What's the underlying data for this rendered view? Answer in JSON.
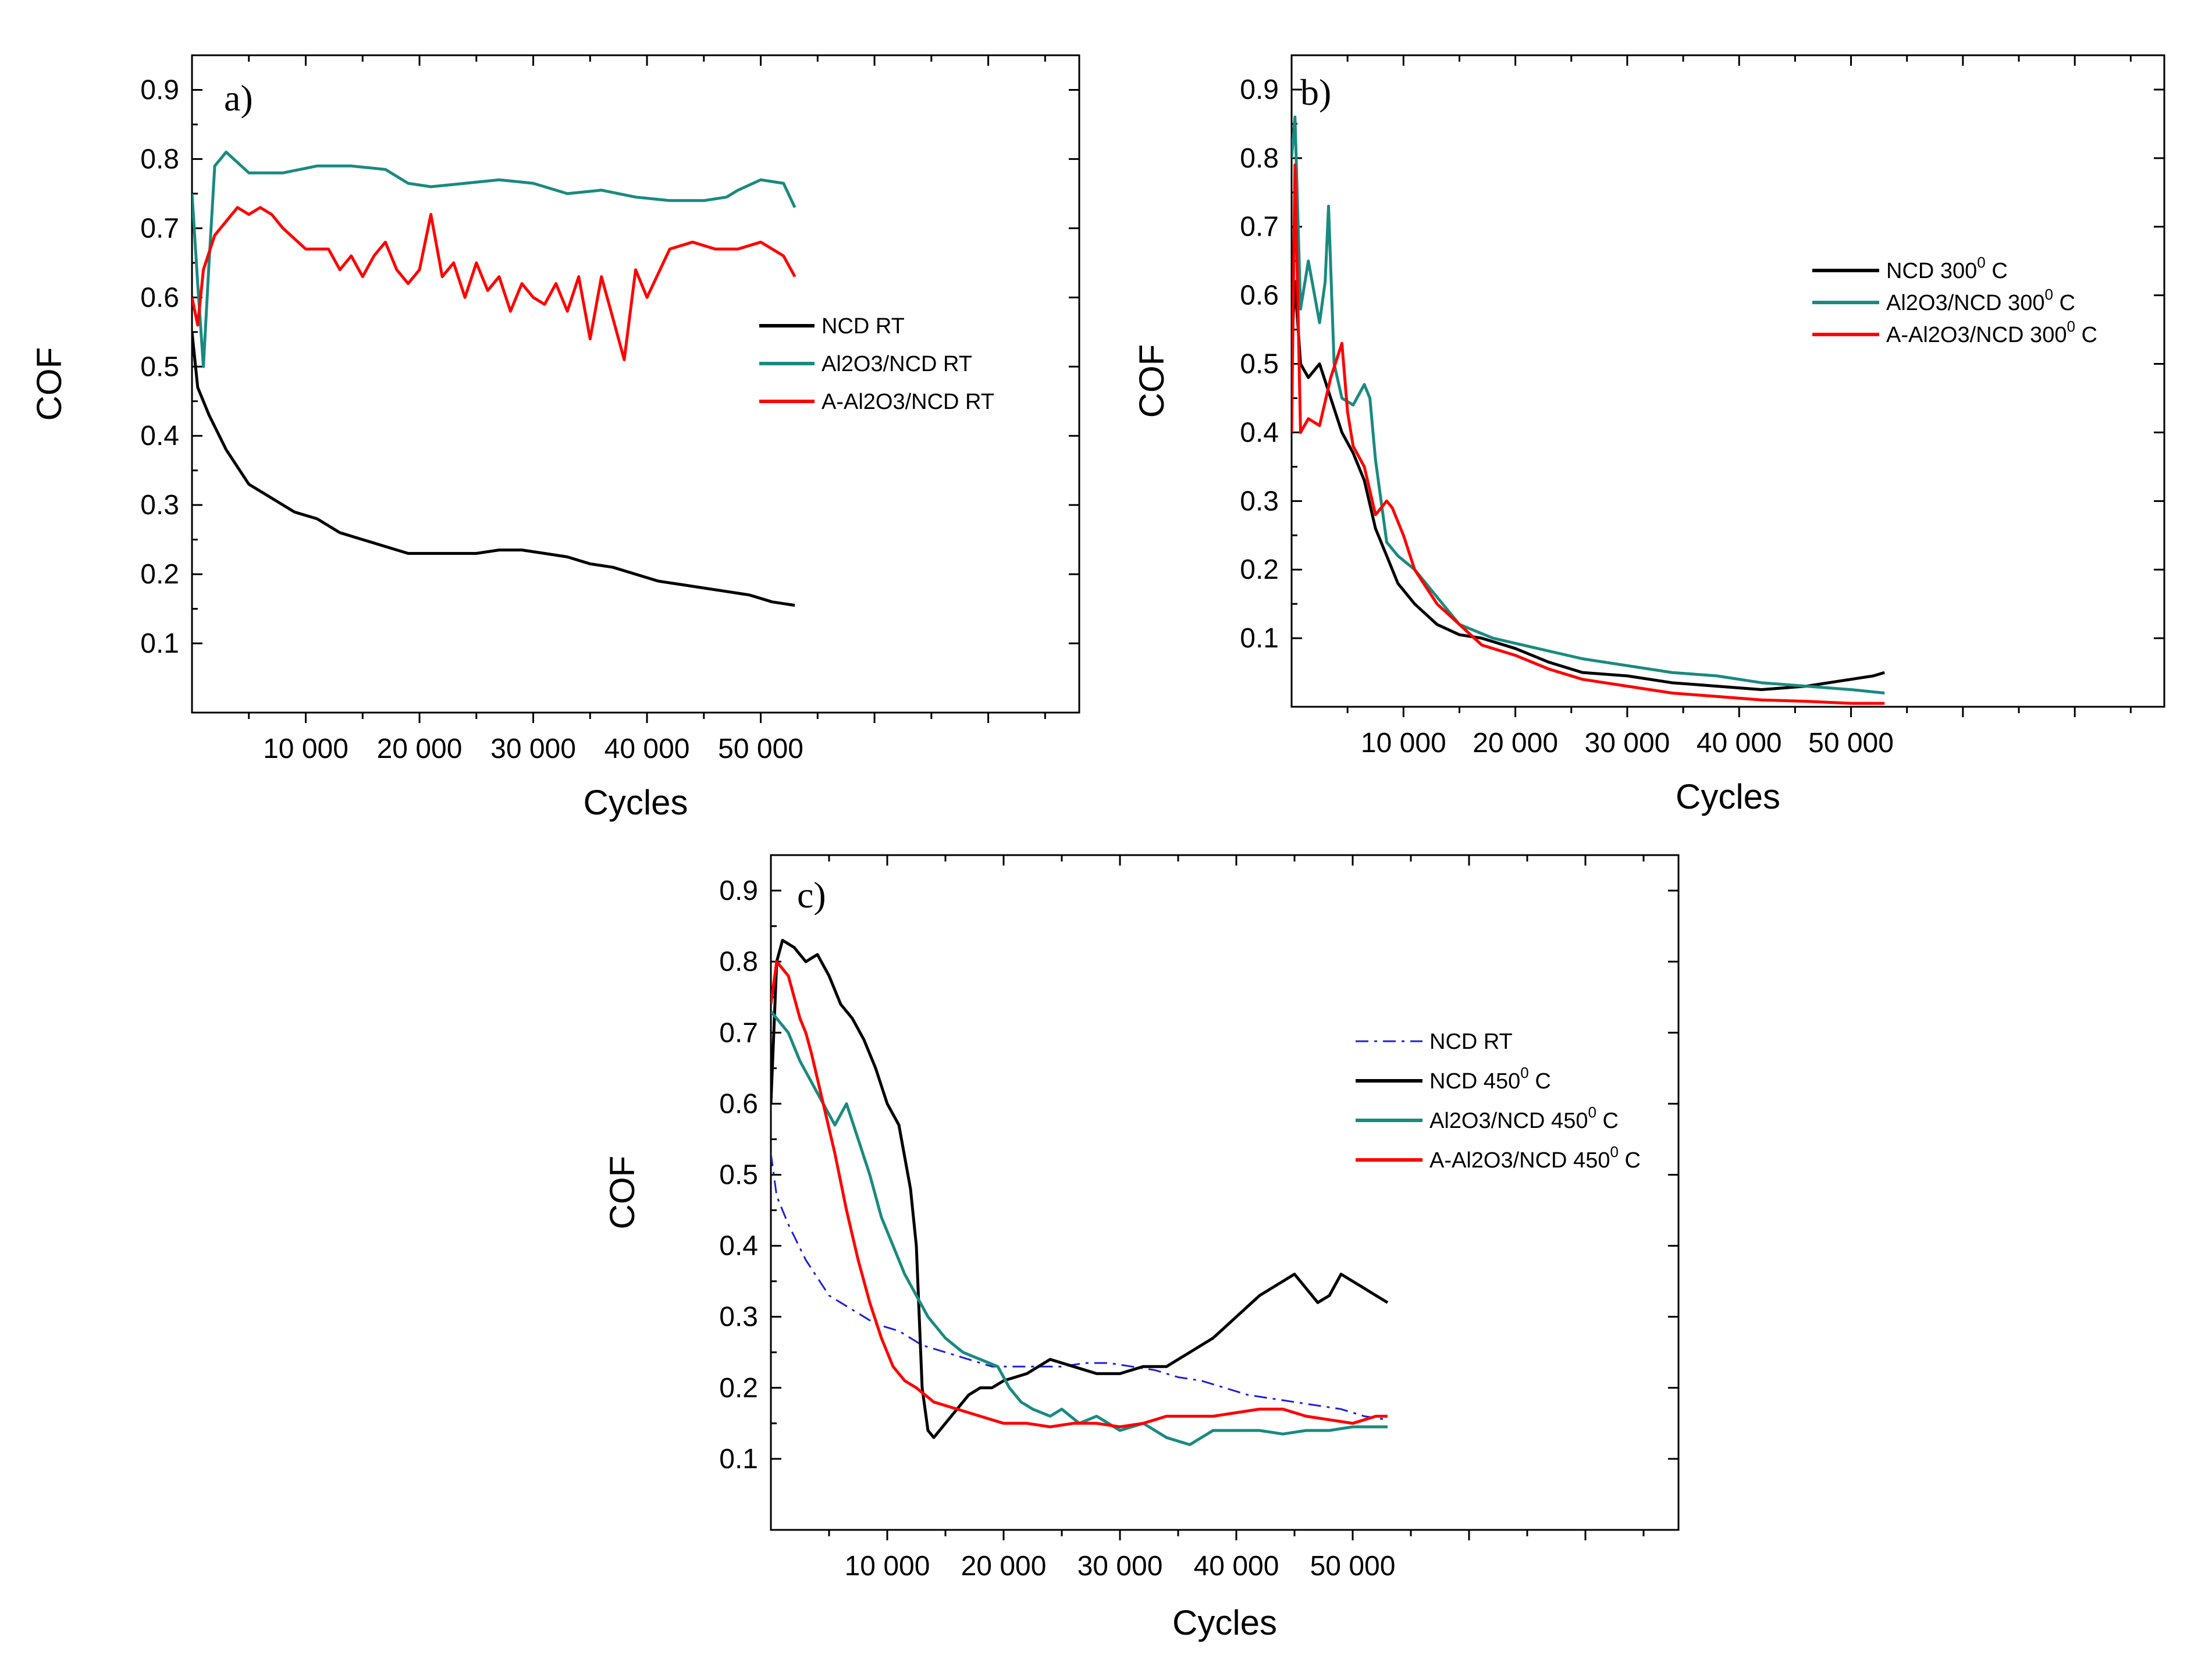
{
  "chart_data": [
    {
      "type": "line",
      "panel": "a)",
      "xlabel": "Cycles",
      "ylabel": "COF",
      "xlim": [
        0,
        78000
      ],
      "ylim": [
        0,
        0.95
      ],
      "xticks": [
        10000,
        20000,
        30000,
        40000,
        50000
      ],
      "xtick_labels": [
        "10 000",
        "20 000",
        "30 000",
        "40 000",
        "50 000"
      ],
      "yticks": [
        0.1,
        0.2,
        0.3,
        0.4,
        0.5,
        0.6,
        0.7,
        0.8,
        0.9
      ],
      "ytick_labels": [
        "0.1",
        "0.2",
        "0.3",
        "0.4",
        "0.5",
        "0.6",
        "0.7",
        "0.8",
        "0.9"
      ],
      "legend_position": "right",
      "series": [
        {
          "name": "NCD RT",
          "color": "#000000",
          "style": "solid",
          "x": [
            0,
            500,
            1500,
            3000,
            5000,
            7000,
            9000,
            11000,
            13000,
            15000,
            17000,
            19000,
            21000,
            23000,
            25000,
            27000,
            29000,
            31000,
            33000,
            35000,
            37000,
            39000,
            41000,
            43000,
            45000,
            47000,
            49000,
            51000,
            53000
          ],
          "y": [
            0.55,
            0.47,
            0.43,
            0.38,
            0.33,
            0.31,
            0.29,
            0.28,
            0.26,
            0.25,
            0.24,
            0.23,
            0.23,
            0.23,
            0.23,
            0.235,
            0.235,
            0.23,
            0.225,
            0.215,
            0.21,
            0.2,
            0.19,
            0.185,
            0.18,
            0.175,
            0.17,
            0.16,
            0.155
          ]
        },
        {
          "name": "Al2O3/NCD RT",
          "color": "#1a8a80",
          "style": "solid",
          "x": [
            0,
            500,
            1000,
            1500,
            2000,
            3000,
            5000,
            8000,
            11000,
            14000,
            17000,
            19000,
            21000,
            24000,
            27000,
            30000,
            33000,
            36000,
            39000,
            42000,
            45000,
            47000,
            48000,
            50000,
            52000,
            53000
          ],
          "y": [
            0.75,
            0.62,
            0.5,
            0.65,
            0.79,
            0.81,
            0.78,
            0.78,
            0.79,
            0.79,
            0.785,
            0.765,
            0.76,
            0.765,
            0.77,
            0.765,
            0.75,
            0.755,
            0.745,
            0.74,
            0.74,
            0.745,
            0.755,
            0.77,
            0.765,
            0.73
          ]
        },
        {
          "name": "A-Al2O3/NCD  RT",
          "color": "#ff0000",
          "style": "solid",
          "x": [
            0,
            500,
            1000,
            2000,
            3000,
            4000,
            5000,
            6000,
            7000,
            8000,
            10000,
            12000,
            13000,
            14000,
            15000,
            16000,
            17000,
            18000,
            19000,
            20000,
            21000,
            22000,
            23000,
            24000,
            25000,
            26000,
            27000,
            28000,
            29000,
            30000,
            31000,
            32000,
            33000,
            34000,
            35000,
            36000,
            37000,
            38000,
            39000,
            40000,
            42000,
            44000,
            46000,
            48000,
            50000,
            52000,
            53000
          ],
          "y": [
            0.6,
            0.56,
            0.64,
            0.69,
            0.71,
            0.73,
            0.72,
            0.73,
            0.72,
            0.7,
            0.67,
            0.67,
            0.64,
            0.66,
            0.63,
            0.66,
            0.68,
            0.64,
            0.62,
            0.64,
            0.72,
            0.63,
            0.65,
            0.6,
            0.65,
            0.61,
            0.63,
            0.58,
            0.62,
            0.6,
            0.59,
            0.62,
            0.58,
            0.63,
            0.54,
            0.63,
            0.57,
            0.51,
            0.64,
            0.6,
            0.67,
            0.68,
            0.67,
            0.67,
            0.68,
            0.66,
            0.63
          ]
        }
      ]
    },
    {
      "type": "line",
      "panel": "b)",
      "xlabel": "Cycles",
      "ylabel": "COF",
      "xlim": [
        0,
        78000
      ],
      "ylim": [
        0,
        0.95
      ],
      "xticks": [
        10000,
        20000,
        30000,
        40000,
        50000
      ],
      "xtick_labels": [
        "10 000",
        "20 000",
        "30 000",
        "40 000",
        "50 000"
      ],
      "yticks": [
        0.1,
        0.2,
        0.3,
        0.4,
        0.5,
        0.6,
        0.7,
        0.8,
        0.9
      ],
      "ytick_labels": [
        "0.1",
        "0.2",
        "0.3",
        "0.4",
        "0.5",
        "0.6",
        "0.7",
        "0.8",
        "0.9"
      ],
      "legend_position": "top-right",
      "legend_superscript": "0",
      "series": [
        {
          "name": "NCD 300",
          "unit": "C",
          "color": "#000000",
          "style": "solid",
          "x": [
            0,
            300,
            800,
            1500,
            2500,
            3500,
            4500,
            5500,
            6500,
            7500,
            8500,
            9500,
            11000,
            13000,
            15000,
            17000,
            20000,
            23000,
            26000,
            30000,
            34000,
            38000,
            42000,
            46000,
            50000,
            52000,
            53000
          ],
          "y": [
            0.52,
            0.62,
            0.5,
            0.48,
            0.5,
            0.45,
            0.4,
            0.37,
            0.33,
            0.26,
            0.22,
            0.18,
            0.15,
            0.12,
            0.105,
            0.1,
            0.085,
            0.065,
            0.05,
            0.045,
            0.035,
            0.03,
            0.025,
            0.03,
            0.04,
            0.045,
            0.05
          ]
        },
        {
          "name": "Al2O3/NCD 300",
          "unit": "C",
          "color": "#1a8a80",
          "style": "solid",
          "x": [
            0,
            300,
            800,
            1500,
            2500,
            3000,
            3300,
            3800,
            4500,
            5500,
            6500,
            7000,
            7500,
            8500,
            9500,
            11000,
            13000,
            15000,
            18000,
            22000,
            26000,
            30000,
            34000,
            38000,
            42000,
            46000,
            50000,
            53000
          ],
          "y": [
            0.8,
            0.86,
            0.58,
            0.65,
            0.56,
            0.62,
            0.73,
            0.5,
            0.45,
            0.44,
            0.47,
            0.45,
            0.36,
            0.24,
            0.22,
            0.2,
            0.16,
            0.12,
            0.1,
            0.085,
            0.07,
            0.06,
            0.05,
            0.045,
            0.035,
            0.03,
            0.025,
            0.02
          ]
        },
        {
          "name": "A-Al2O3/NCD 300",
          "unit": "C",
          "color": "#ff0000",
          "style": "solid",
          "x": [
            0,
            300,
            800,
            1500,
            2500,
            3500,
            4500,
            5000,
            5500,
            6500,
            7500,
            8500,
            9000,
            10000,
            11000,
            13000,
            15000,
            17000,
            20000,
            23000,
            26000,
            30000,
            34000,
            38000,
            42000,
            46000,
            50000,
            53000
          ],
          "y": [
            0.4,
            0.79,
            0.4,
            0.42,
            0.41,
            0.48,
            0.53,
            0.43,
            0.38,
            0.35,
            0.28,
            0.3,
            0.29,
            0.25,
            0.2,
            0.15,
            0.12,
            0.09,
            0.075,
            0.055,
            0.04,
            0.03,
            0.02,
            0.015,
            0.01,
            0.008,
            0.005,
            0.005
          ]
        }
      ]
    },
    {
      "type": "line",
      "panel": "c)",
      "xlabel": "Cycles",
      "ylabel": "COF",
      "xlim": [
        0,
        78000
      ],
      "ylim": [
        0,
        0.95
      ],
      "xticks": [
        10000,
        20000,
        30000,
        40000,
        50000
      ],
      "xtick_labels": [
        "10 000",
        "20 000",
        "30 000",
        "40 000",
        "50 000"
      ],
      "yticks": [
        0.1,
        0.2,
        0.3,
        0.4,
        0.5,
        0.6,
        0.7,
        0.8,
        0.9
      ],
      "ytick_labels": [
        "0.1",
        "0.2",
        "0.3",
        "0.4",
        "0.5",
        "0.6",
        "0.7",
        "0.8",
        "0.9"
      ],
      "legend_position": "right",
      "legend_superscript": "0",
      "series": [
        {
          "name": "NCD RT",
          "unit": "",
          "color": "#1f1fd6",
          "style": "dashdot",
          "x": [
            0,
            500,
            1500,
            3000,
            5000,
            7000,
            9000,
            11000,
            13000,
            15000,
            17000,
            19000,
            21000,
            23000,
            25000,
            27000,
            29000,
            31000,
            33000,
            35000,
            37000,
            39000,
            41000,
            43000,
            45000,
            47000,
            49000,
            51000,
            53000
          ],
          "y": [
            0.53,
            0.47,
            0.43,
            0.38,
            0.33,
            0.31,
            0.29,
            0.28,
            0.26,
            0.25,
            0.24,
            0.23,
            0.23,
            0.23,
            0.23,
            0.235,
            0.235,
            0.23,
            0.225,
            0.215,
            0.21,
            0.2,
            0.19,
            0.185,
            0.18,
            0.175,
            0.17,
            0.16,
            0.155
          ]
        },
        {
          "name": "NCD 450",
          "unit": "C",
          "color": "#000000",
          "style": "solid",
          "x": [
            0,
            200,
            500,
            1000,
            2000,
            3000,
            4000,
            5000,
            6000,
            7000,
            8000,
            9000,
            10000,
            11000,
            12000,
            12500,
            13000,
            13500,
            14000,
            15000,
            16000,
            17000,
            18000,
            19000,
            20000,
            22000,
            24000,
            26000,
            28000,
            30000,
            32000,
            34000,
            36000,
            38000,
            40000,
            42000,
            44000,
            45000,
            46000,
            47000,
            48000,
            49000,
            50000,
            51000,
            52000,
            53000
          ],
          "y": [
            0.6,
            0.68,
            0.8,
            0.83,
            0.82,
            0.8,
            0.81,
            0.78,
            0.74,
            0.72,
            0.69,
            0.65,
            0.6,
            0.57,
            0.48,
            0.4,
            0.2,
            0.14,
            0.13,
            0.15,
            0.17,
            0.19,
            0.2,
            0.2,
            0.21,
            0.22,
            0.24,
            0.23,
            0.22,
            0.22,
            0.23,
            0.23,
            0.25,
            0.27,
            0.3,
            0.33,
            0.35,
            0.36,
            0.34,
            0.32,
            0.33,
            0.36,
            0.35,
            0.34,
            0.33,
            0.32
          ]
        },
        {
          "name": "Al2O3/NCD 450",
          "unit": "C",
          "color": "#1a8a80",
          "style": "solid",
          "x": [
            0,
            500,
            1500,
            2500,
            3500,
            4500,
            5500,
            6500,
            7500,
            8500,
            9500,
            10500,
            11500,
            12500,
            13500,
            15000,
            16500,
            18000,
            19500,
            20500,
            21500,
            22500,
            24000,
            25000,
            26500,
            28000,
            30000,
            32000,
            34000,
            36000,
            38000,
            40000,
            42000,
            44000,
            46000,
            48000,
            50000,
            52000,
            53000
          ],
          "y": [
            0.73,
            0.72,
            0.7,
            0.66,
            0.63,
            0.6,
            0.57,
            0.6,
            0.55,
            0.5,
            0.44,
            0.4,
            0.36,
            0.33,
            0.3,
            0.27,
            0.25,
            0.24,
            0.23,
            0.2,
            0.18,
            0.17,
            0.16,
            0.17,
            0.15,
            0.16,
            0.14,
            0.15,
            0.13,
            0.12,
            0.14,
            0.14,
            0.14,
            0.135,
            0.14,
            0.14,
            0.145,
            0.145,
            0.145
          ]
        },
        {
          "name": "A-Al2O3/NCD 450",
          "unit": "C",
          "color": "#ff0000",
          "style": "solid",
          "x": [
            0,
            500,
            1500,
            2500,
            3000,
            3500,
            4500,
            5500,
            6500,
            7500,
            8500,
            9500,
            10500,
            11500,
            12500,
            14000,
            16000,
            18000,
            20000,
            22000,
            24000,
            26000,
            28000,
            30000,
            32000,
            34000,
            36000,
            38000,
            40000,
            42000,
            44000,
            46000,
            48000,
            50000,
            52000,
            53000
          ],
          "y": [
            0.74,
            0.8,
            0.78,
            0.72,
            0.7,
            0.67,
            0.6,
            0.53,
            0.45,
            0.38,
            0.32,
            0.27,
            0.23,
            0.21,
            0.2,
            0.18,
            0.17,
            0.16,
            0.15,
            0.15,
            0.145,
            0.15,
            0.15,
            0.145,
            0.15,
            0.16,
            0.16,
            0.16,
            0.165,
            0.17,
            0.17,
            0.16,
            0.155,
            0.15,
            0.16,
            0.16
          ]
        }
      ]
    }
  ]
}
